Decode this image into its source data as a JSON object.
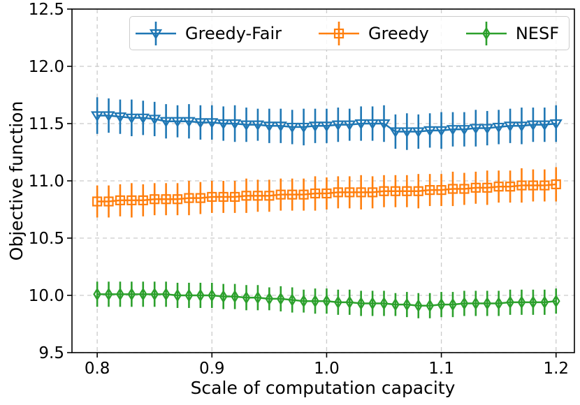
{
  "chart_data": {
    "type": "line",
    "title": "",
    "xlabel": "Scale of computation capacity",
    "ylabel": "Objective function",
    "xlim": [
      0.778,
      1.216
    ],
    "ylim": [
      9.5,
      12.5
    ],
    "grid": true,
    "grid_color": "#cccccc",
    "axis_color": "#000000",
    "legend_position": "top-center",
    "legend_columns": 3,
    "x_ticks": {
      "values": [
        0.8,
        0.9,
        1.0,
        1.1,
        1.2
      ],
      "labels": [
        "0.8",
        "0.9",
        "1.0",
        "1.1",
        "1.2"
      ]
    },
    "y_ticks": {
      "values": [
        9.5,
        10.0,
        10.5,
        11.0,
        11.5,
        12.0,
        12.5
      ],
      "labels": [
        "9.5",
        "10.0",
        "10.5",
        "11.0",
        "11.5",
        "12.0",
        "12.5"
      ]
    },
    "x": [
      0.8,
      0.81,
      0.82,
      0.83,
      0.84,
      0.85,
      0.86,
      0.87,
      0.88,
      0.89,
      0.9,
      0.91,
      0.92,
      0.93,
      0.94,
      0.95,
      0.96,
      0.97,
      0.98,
      0.99,
      1.0,
      1.01,
      1.02,
      1.03,
      1.04,
      1.05,
      1.06,
      1.07,
      1.08,
      1.09,
      1.1,
      1.11,
      1.12,
      1.13,
      1.14,
      1.15,
      1.16,
      1.17,
      1.18,
      1.19,
      1.2
    ],
    "series": [
      {
        "name": "Greedy-Fair",
        "color": "#1f77b4",
        "marker": "triangle-down",
        "values": [
          11.57,
          11.57,
          11.56,
          11.55,
          11.55,
          11.54,
          11.52,
          11.52,
          11.52,
          11.51,
          11.51,
          11.5,
          11.5,
          11.49,
          11.49,
          11.48,
          11.48,
          11.47,
          11.47,
          11.48,
          11.48,
          11.49,
          11.49,
          11.5,
          11.5,
          11.5,
          11.43,
          11.43,
          11.43,
          11.44,
          11.44,
          11.45,
          11.45,
          11.46,
          11.46,
          11.47,
          11.48,
          11.48,
          11.49,
          11.49,
          11.5
        ],
        "err": [
          0.16,
          0.15,
          0.15,
          0.16,
          0.15,
          0.15,
          0.15,
          0.14,
          0.15,
          0.15,
          0.15,
          0.15,
          0.16,
          0.15,
          0.14,
          0.15,
          0.15,
          0.15,
          0.16,
          0.15,
          0.15,
          0.15,
          0.14,
          0.15,
          0.15,
          0.16,
          0.15,
          0.16,
          0.15,
          0.15,
          0.16,
          0.15,
          0.15,
          0.16,
          0.15,
          0.15,
          0.15,
          0.16,
          0.15,
          0.15,
          0.16
        ]
      },
      {
        "name": "Greedy",
        "color": "#ff7f0e",
        "marker": "square",
        "values": [
          10.82,
          10.82,
          10.83,
          10.83,
          10.83,
          10.84,
          10.84,
          10.84,
          10.85,
          10.85,
          10.86,
          10.86,
          10.86,
          10.87,
          10.87,
          10.87,
          10.88,
          10.88,
          10.88,
          10.89,
          10.89,
          10.9,
          10.9,
          10.9,
          10.9,
          10.91,
          10.91,
          10.91,
          10.91,
          10.92,
          10.92,
          10.93,
          10.93,
          10.94,
          10.94,
          10.95,
          10.95,
          10.96,
          10.96,
          10.96,
          10.97
        ],
        "err": [
          0.14,
          0.14,
          0.14,
          0.15,
          0.14,
          0.14,
          0.14,
          0.14,
          0.15,
          0.14,
          0.14,
          0.14,
          0.14,
          0.15,
          0.14,
          0.14,
          0.14,
          0.14,
          0.14,
          0.15,
          0.14,
          0.14,
          0.14,
          0.15,
          0.14,
          0.14,
          0.14,
          0.14,
          0.15,
          0.14,
          0.14,
          0.15,
          0.14,
          0.14,
          0.15,
          0.14,
          0.14,
          0.15,
          0.14,
          0.14,
          0.15
        ]
      },
      {
        "name": "NESF",
        "color": "#2ca02c",
        "marker": "thin-diamond",
        "values": [
          10.01,
          10.01,
          10.01,
          10.01,
          10.01,
          10.01,
          10.01,
          10.0,
          10.0,
          10.0,
          10.0,
          9.99,
          9.99,
          9.98,
          9.98,
          9.97,
          9.97,
          9.96,
          9.95,
          9.95,
          9.95,
          9.94,
          9.94,
          9.93,
          9.93,
          9.93,
          9.92,
          9.92,
          9.91,
          9.91,
          9.92,
          9.92,
          9.93,
          9.93,
          9.93,
          9.93,
          9.94,
          9.94,
          9.94,
          9.94,
          9.95
        ],
        "err": [
          0.11,
          0.11,
          0.11,
          0.11,
          0.11,
          0.11,
          0.11,
          0.11,
          0.11,
          0.11,
          0.11,
          0.11,
          0.11,
          0.11,
          0.11,
          0.1,
          0.11,
          0.11,
          0.1,
          0.11,
          0.11,
          0.11,
          0.11,
          0.11,
          0.11,
          0.11,
          0.1,
          0.11,
          0.11,
          0.11,
          0.11,
          0.11,
          0.11,
          0.11,
          0.11,
          0.11,
          0.11,
          0.11,
          0.11,
          0.11,
          0.11
        ]
      }
    ]
  }
}
